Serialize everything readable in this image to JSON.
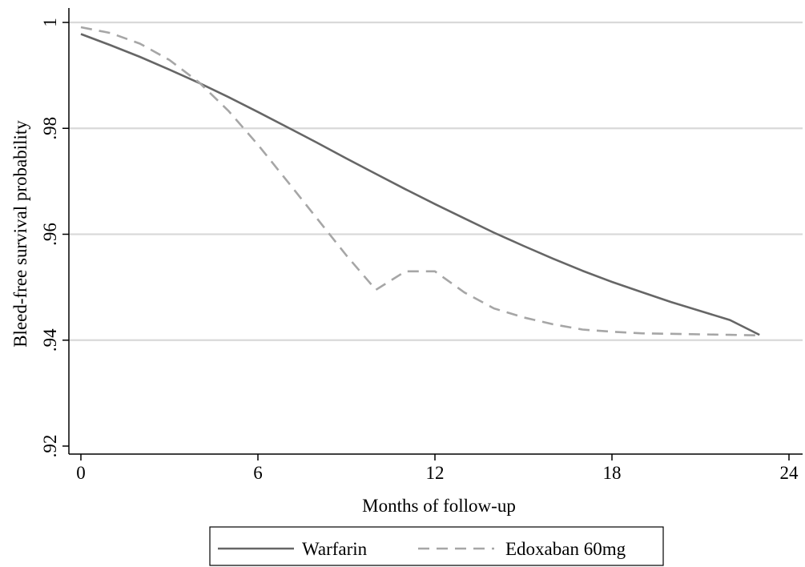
{
  "chart_data": {
    "type": "line",
    "xlabel": "Months of follow-up",
    "ylabel": "Bleed-free survival probability",
    "xlim": [
      0,
      24
    ],
    "ylim": [
      0.92,
      1.0
    ],
    "xticks": [
      0,
      6,
      12,
      18,
      24
    ],
    "xtick_labels": [
      "0",
      "6",
      "12",
      "18",
      "24"
    ],
    "yticks": [
      0.92,
      0.94,
      0.96,
      0.98,
      1.0
    ],
    "ytick_labels": [
      ".92",
      ".94",
      ".96",
      ".98",
      "1"
    ],
    "grid": "horizontal",
    "legend_position": "bottom",
    "series": [
      {
        "name": "Warfarin",
        "color": "#666666",
        "dash": "solid",
        "x": [
          0,
          1,
          2,
          3,
          4,
          5,
          6,
          7,
          8,
          9,
          10,
          11,
          12,
          13,
          14,
          15,
          16,
          17,
          18,
          19,
          20,
          21,
          22,
          23
        ],
        "y": [
          0.9978,
          0.9957,
          0.9935,
          0.9911,
          0.9886,
          0.9859,
          0.9831,
          0.9802,
          0.9773,
          0.9743,
          0.9714,
          0.9685,
          0.9657,
          0.963,
          0.9603,
          0.9578,
          0.9554,
          0.9531,
          0.951,
          0.9491,
          0.9472,
          0.9455,
          0.9438,
          0.941
        ]
      },
      {
        "name": "Edoxaban 60mg",
        "color": "#a6a6a6",
        "dash": "dashed",
        "x": [
          0,
          1,
          2,
          3,
          4,
          5,
          6,
          7,
          8,
          9,
          10,
          11,
          12,
          13,
          14,
          15,
          16,
          17,
          18,
          19,
          20,
          21,
          22,
          23
        ],
        "y": [
          0.9991,
          0.998,
          0.996,
          0.9929,
          0.9887,
          0.9833,
          0.9769,
          0.97,
          0.963,
          0.956,
          0.9495,
          0.953,
          0.953,
          0.949,
          0.946,
          0.9443,
          0.943,
          0.942,
          0.9416,
          0.9413,
          0.9412,
          0.9411,
          0.941,
          0.9409
        ]
      }
    ]
  }
}
